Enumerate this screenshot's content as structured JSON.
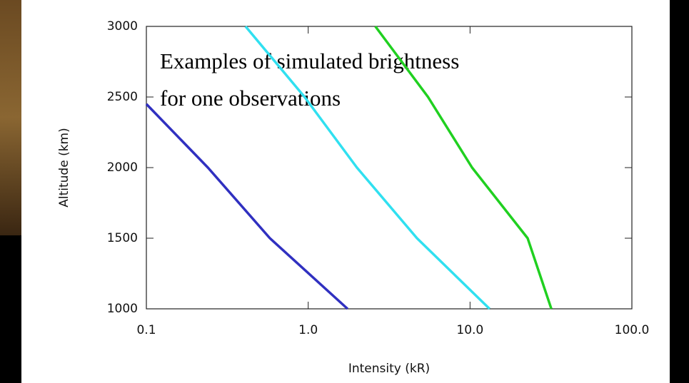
{
  "chart_data": {
    "type": "line",
    "xlabel": "Intensity (kR)",
    "ylabel": "Altitude (km)",
    "annotations": [
      "Examples of simulated brightness",
      "for one observations"
    ],
    "xscale": "log",
    "xlim": [
      0.1,
      100
    ],
    "xticks": [
      0.1,
      {
        "value": 1,
        "label": "1.0"
      },
      {
        "value": 10,
        "label": "10.0"
      },
      {
        "value": 100,
        "label": "100.0"
      }
    ],
    "ylim": [
      1000,
      3000
    ],
    "yticks": [
      1000,
      1500,
      2000,
      2500,
      3000
    ],
    "series": [
      {
        "color": "#3030c0",
        "x": [
          0.1,
          0.24,
          0.58,
          1.75
        ],
        "values": [
          2450,
          2000,
          1500,
          1000
        ]
      },
      {
        "color": "#30e0f0",
        "x": [
          0.41,
          0.95,
          2.0,
          4.7,
          13.2
        ],
        "values": [
          3000,
          2500,
          2000,
          1500,
          1000
        ]
      },
      {
        "color": "#20d020",
        "x": [
          2.6,
          5.5,
          10.3,
          22.7,
          31.8
        ],
        "values": [
          3000,
          2500,
          2000,
          1500,
          1000
        ]
      }
    ]
  }
}
